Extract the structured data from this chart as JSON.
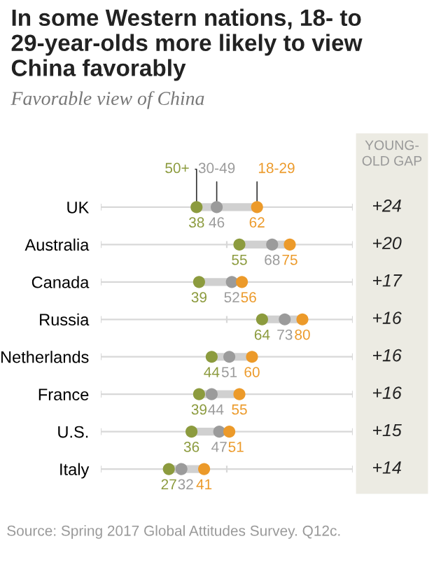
{
  "chart_data": {
    "type": "scatter",
    "orientation": "horizontal",
    "title": "In some Western nations, 18- to 29-year-olds more likely to view China favorably",
    "subtitle": "Favorable view of China",
    "categories": [
      "UK",
      "Australia",
      "Canada",
      "Russia",
      "Netherlands",
      "France",
      "U.S.",
      "Italy"
    ],
    "series": [
      {
        "name": "50+",
        "color": "#8c9b3e",
        "values": [
          38,
          55,
          39,
          64,
          44,
          39,
          36,
          27
        ]
      },
      {
        "name": "30-49",
        "color": "#9b9b9b",
        "values": [
          46,
          68,
          52,
          73,
          51,
          44,
          47,
          32
        ]
      },
      {
        "name": "18-29",
        "color": "#ec9a2a",
        "values": [
          62,
          75,
          56,
          80,
          60,
          55,
          51,
          41
        ]
      }
    ],
    "xlim": [
      0,
      100
    ],
    "xticks": [
      {
        "value": 0,
        "label": null
      },
      {
        "value": 50,
        "label": null
      },
      {
        "value": 100,
        "label": null
      }
    ],
    "grid": "y",
    "marker": "circle",
    "legend": false,
    "data_labels": true,
    "annotations": [
      "Source: Spring 2017 Global Attitudes Survey. Q12c.",
      "YOUNG-\nOLD GAP",
      "+24",
      "+20",
      "+17",
      "+16",
      "+16",
      "+16",
      "+15",
      "+14"
    ]
  }
}
